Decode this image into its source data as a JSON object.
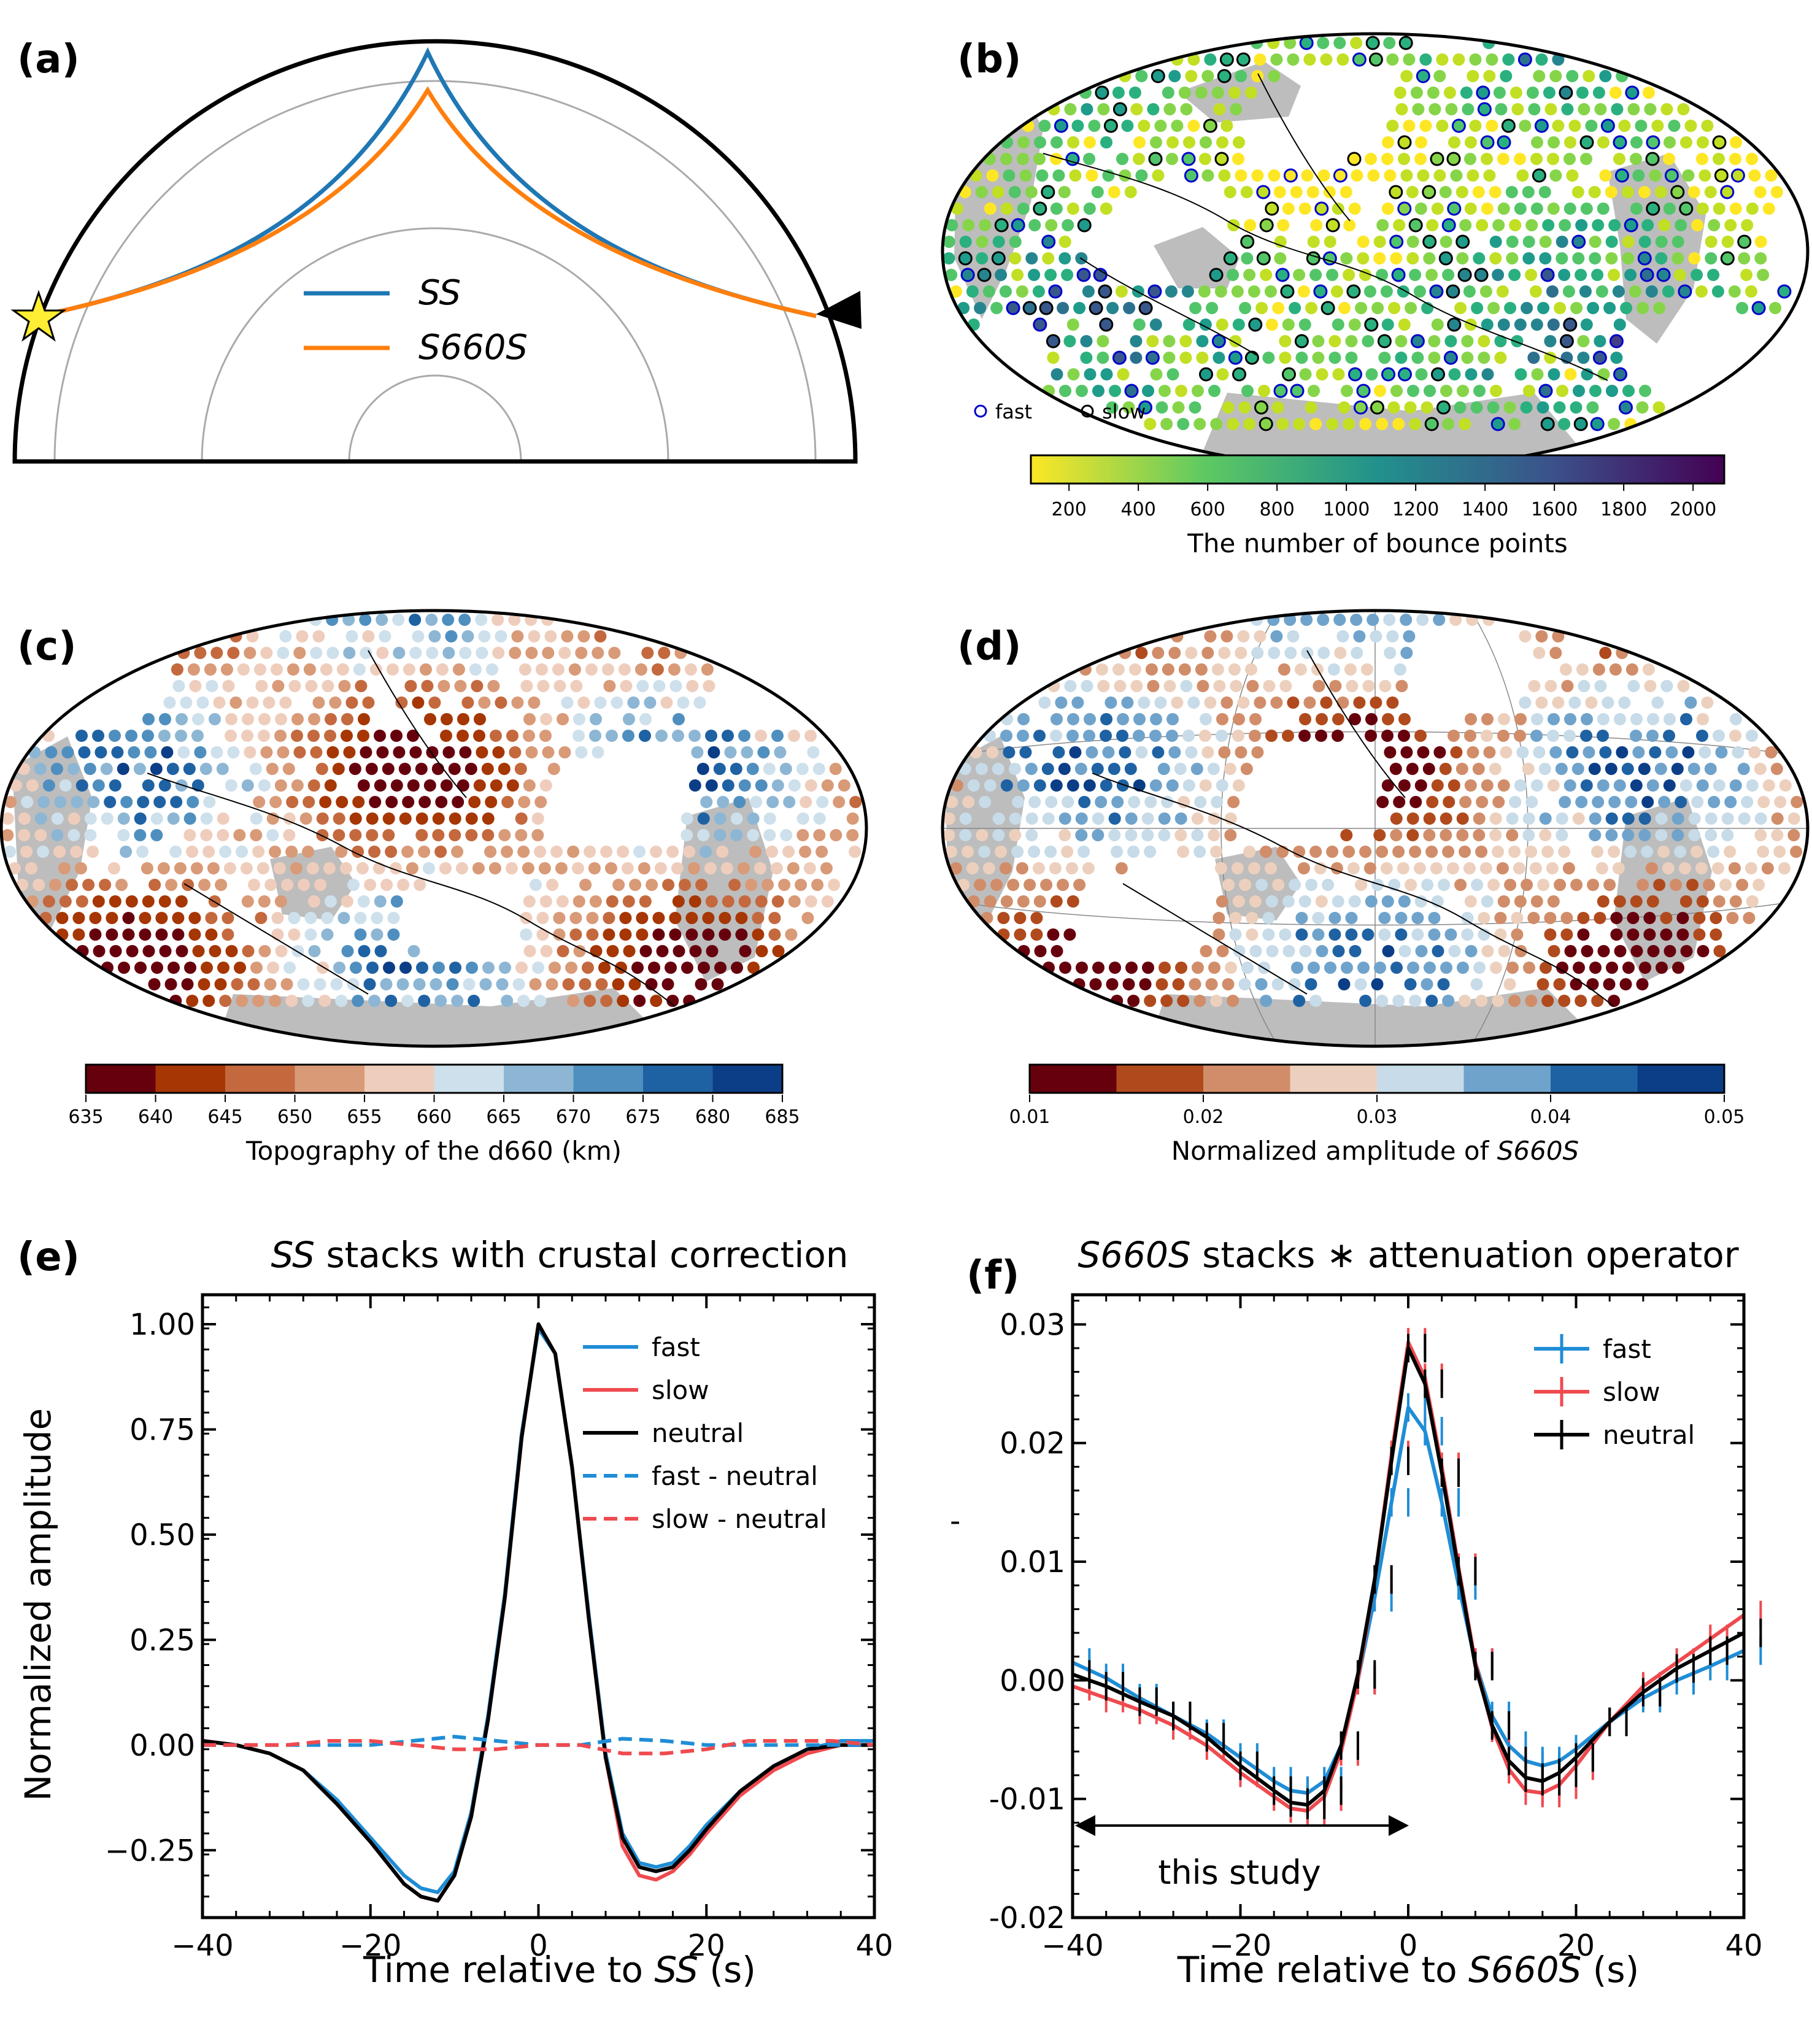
{
  "panels": {
    "a": {
      "label": "(a)",
      "legend": [
        {
          "name": "SS",
          "color": "#1f77b4"
        },
        {
          "name": "S660S",
          "color": "#ff7f0e"
        }
      ]
    },
    "b": {
      "label": "(b)",
      "marker_legend": [
        {
          "name": "fast",
          "color": "#0000cc"
        },
        {
          "name": "slow",
          "color": "#000000"
        }
      ],
      "colorbar_label": "The number of bounce points",
      "colorbar_ticks": [
        "200",
        "400",
        "600",
        "800",
        "1000",
        "1200",
        "1400",
        "1600",
        "1800",
        "2000"
      ]
    },
    "c": {
      "label": "(c)",
      "colorbar_label": "Topography of the d660 (km)",
      "colorbar_ticks": [
        "635",
        "640",
        "645",
        "650",
        "655",
        "660",
        "665",
        "670",
        "675",
        "680",
        "685"
      ]
    },
    "d": {
      "label": "(d)",
      "colorbar_label_prefix": "Normalized amplitude of ",
      "colorbar_label_italic": "S660S",
      "colorbar_ticks": [
        "0.01",
        "0.02",
        "0.03",
        "0.04",
        "0.05"
      ]
    },
    "e": {
      "label": "(e)"
    },
    "f": {
      "label": "(f)",
      "annotation": "this study",
      "stray_mark": "-"
    }
  },
  "colors": {
    "fast": "#1f8dd6",
    "slow": "#ef4a4f",
    "neutral": "#000000",
    "land": "#bdbdbd"
  },
  "chart_data": [
    {
      "id": "e",
      "type": "line",
      "title_italic": "SS",
      "title_rest": " stacks with crustal correction",
      "xlabel_prefix": "Time relative to ",
      "xlabel_italic": "SS",
      "xlabel_suffix": " (s)",
      "ylabel": "Normalized amplitude",
      "xlim": [
        -40,
        40
      ],
      "ylim": [
        -0.41,
        1.07
      ],
      "xticks": [
        "−40",
        "−20",
        "0",
        "20",
        "40"
      ],
      "yticks": [
        "1.00",
        "0.75",
        "0.50",
        "0.25",
        "0.00",
        "−0.25"
      ],
      "series": [
        {
          "name": "fast",
          "style": "solid",
          "x": [
            -40,
            -36,
            -32,
            -28,
            -24,
            -20,
            -16,
            -14,
            -12,
            -10,
            -8,
            -6,
            -4,
            -2,
            0,
            2,
            4,
            6,
            8,
            10,
            12,
            14,
            16,
            18,
            20,
            24,
            28,
            32,
            36,
            40
          ],
          "values": [
            0.01,
            0.0,
            -0.02,
            -0.06,
            -0.13,
            -0.22,
            -0.31,
            -0.34,
            -0.35,
            -0.3,
            -0.16,
            0.07,
            0.36,
            0.74,
            0.99,
            0.93,
            0.66,
            0.31,
            -0.02,
            -0.21,
            -0.28,
            -0.29,
            -0.28,
            -0.24,
            -0.19,
            -0.11,
            -0.05,
            -0.01,
            0.01,
            0.01
          ]
        },
        {
          "name": "slow",
          "style": "solid",
          "x": [
            -40,
            -36,
            -32,
            -28,
            -24,
            -20,
            -16,
            -14,
            -12,
            -10,
            -8,
            -6,
            -4,
            -2,
            0,
            2,
            4,
            6,
            8,
            10,
            12,
            14,
            16,
            18,
            20,
            24,
            28,
            32,
            36,
            40
          ],
          "values": [
            0.01,
            0.0,
            -0.02,
            -0.06,
            -0.14,
            -0.23,
            -0.33,
            -0.36,
            -0.37,
            -0.31,
            -0.17,
            0.06,
            0.35,
            0.73,
            1.0,
            0.93,
            0.66,
            0.3,
            -0.03,
            -0.24,
            -0.31,
            -0.32,
            -0.3,
            -0.26,
            -0.21,
            -0.12,
            -0.06,
            -0.02,
            0.0,
            0.0
          ]
        },
        {
          "name": "neutral",
          "style": "solid",
          "x": [
            -40,
            -36,
            -32,
            -28,
            -24,
            -20,
            -16,
            -14,
            -12,
            -10,
            -8,
            -6,
            -4,
            -2,
            0,
            2,
            4,
            6,
            8,
            10,
            12,
            14,
            16,
            18,
            20,
            24,
            28,
            32,
            36,
            40
          ],
          "values": [
            0.01,
            0.0,
            -0.02,
            -0.06,
            -0.14,
            -0.23,
            -0.33,
            -0.36,
            -0.37,
            -0.31,
            -0.17,
            0.06,
            0.35,
            0.73,
            1.0,
            0.93,
            0.66,
            0.3,
            -0.03,
            -0.22,
            -0.29,
            -0.3,
            -0.29,
            -0.25,
            -0.2,
            -0.11,
            -0.05,
            -0.01,
            0.0,
            0.0
          ]
        },
        {
          "name": "fast - neutral",
          "style": "dashed",
          "x": [
            -40,
            -35,
            -30,
            -25,
            -20,
            -15,
            -10,
            -5,
            0,
            5,
            10,
            15,
            20,
            25,
            30,
            35,
            40
          ],
          "values": [
            0.0,
            0.0,
            0.0,
            0.0,
            0.0,
            0.01,
            0.02,
            0.01,
            0.0,
            0.0,
            0.015,
            0.01,
            0.0,
            0.0,
            0.0,
            0.0,
            0.0
          ]
        },
        {
          "name": "slow - neutral",
          "style": "dashed",
          "x": [
            -40,
            -35,
            -30,
            -25,
            -20,
            -15,
            -10,
            -5,
            0,
            5,
            10,
            15,
            20,
            25,
            30,
            35,
            40
          ],
          "values": [
            0.0,
            0.0,
            0.0,
            0.01,
            0.01,
            0.0,
            -0.01,
            -0.01,
            0.0,
            0.0,
            -0.02,
            -0.02,
            -0.01,
            0.01,
            0.01,
            0.01,
            0.0
          ]
        }
      ]
    },
    {
      "id": "f",
      "type": "line",
      "title_italic": "S660S",
      "title_rest": " stacks ∗ attenuation operator",
      "xlabel_prefix": "Time relative to ",
      "xlabel_italic": "S660S",
      "xlabel_suffix": " (s)",
      "ylabel": "",
      "xlim": [
        -40,
        40
      ],
      "ylim": [
        -0.02,
        0.0325
      ],
      "xticks": [
        "−40",
        "−20",
        "0",
        "20",
        "40"
      ],
      "yticks": [
        "0.03",
        "0.02",
        "0.01",
        "0.00",
        "-0.01",
        "-0.02"
      ],
      "series": [
        {
          "name": "fast",
          "x": [
            -40,
            -36,
            -32,
            -28,
            -24,
            -20,
            -16,
            -14,
            -12,
            -10,
            -8,
            -6,
            -4,
            -2,
            0,
            2,
            4,
            6,
            8,
            10,
            12,
            14,
            16,
            18,
            20,
            24,
            28,
            32,
            36,
            40
          ],
          "values": [
            0.0015,
            0.0002,
            -0.0015,
            -0.003,
            -0.0045,
            -0.0065,
            -0.0085,
            -0.0093,
            -0.0095,
            -0.0085,
            -0.0055,
            0.0,
            0.007,
            0.015,
            0.023,
            0.021,
            0.015,
            0.008,
            0.0015,
            -0.003,
            -0.0055,
            -0.0068,
            -0.0072,
            -0.0068,
            -0.0058,
            -0.0035,
            -0.0015,
            0.0,
            0.0012,
            0.0025
          ]
        },
        {
          "name": "slow",
          "x": [
            -40,
            -36,
            -32,
            -28,
            -24,
            -20,
            -16,
            -14,
            -12,
            -10,
            -8,
            -6,
            -4,
            -2,
            0,
            2,
            4,
            6,
            8,
            10,
            12,
            14,
            16,
            18,
            20,
            24,
            28,
            32,
            36,
            40
          ],
          "values": [
            -0.0005,
            -0.0015,
            -0.0025,
            -0.0038,
            -0.0055,
            -0.0078,
            -0.0098,
            -0.0108,
            -0.011,
            -0.0098,
            -0.006,
            0.0,
            0.0085,
            0.019,
            0.0285,
            0.0255,
            0.018,
            0.0095,
            0.0015,
            -0.004,
            -0.0075,
            -0.0093,
            -0.0095,
            -0.0088,
            -0.0072,
            -0.0035,
            -0.0005,
            0.0015,
            0.0035,
            0.0055
          ]
        },
        {
          "name": "neutral",
          "x": [
            -40,
            -36,
            -32,
            -28,
            -24,
            -20,
            -16,
            -14,
            -12,
            -10,
            -8,
            -6,
            -4,
            -2,
            0,
            2,
            4,
            6,
            8,
            10,
            12,
            14,
            16,
            18,
            20,
            24,
            28,
            32,
            36,
            40
          ],
          "values": [
            0.0005,
            -0.0005,
            -0.0018,
            -0.003,
            -0.0048,
            -0.0072,
            -0.0093,
            -0.0103,
            -0.0105,
            -0.0093,
            -0.0055,
            0.0005,
            0.0085,
            0.0185,
            0.028,
            0.025,
            0.0175,
            0.0092,
            0.0012,
            -0.0038,
            -0.0068,
            -0.0082,
            -0.0085,
            -0.0078,
            -0.0065,
            -0.0035,
            -0.001,
            0.001,
            0.0025,
            0.004
          ]
        }
      ],
      "errorbar": 0.0012
    }
  ]
}
